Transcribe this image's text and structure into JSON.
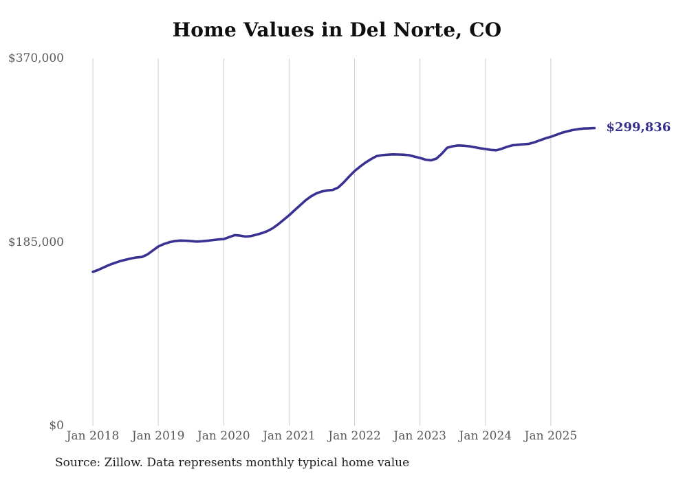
{
  "header": {
    "title": "Home Values in Del Norte, CO"
  },
  "footer": {
    "source_note": "Source: Zillow. Data represents monthly typical home value"
  },
  "chart_data": {
    "type": "line",
    "title": "Home Values in Del Norte, CO",
    "series_name": "Monthly typical home value",
    "frequency": "monthly",
    "x_start_label": "Jan 2018",
    "x_end_label": "Sep 2025",
    "x_tick_labels": [
      "Jan 2018",
      "Jan 2019",
      "Jan 2020",
      "Jan 2021",
      "Jan 2022",
      "Jan 2023",
      "Jan 2024",
      "Jan 2025"
    ],
    "y_ticks": [
      {
        "label": "$370,000",
        "value": 370000
      },
      {
        "label": "$185,000",
        "value": 185000
      },
      {
        "label": "$0",
        "value": 0
      }
    ],
    "ylim": [
      0,
      370000
    ],
    "grid": "vertical-only",
    "legend": "none",
    "line_color": "#3a3292",
    "gridline_color": "#cccccc",
    "tick_label_color": "#595959",
    "end_label": "$299,836",
    "end_value": 299836,
    "values": [
      155000,
      157000,
      159500,
      162000,
      164000,
      165800,
      167200,
      168500,
      169500,
      170000,
      172500,
      176500,
      180500,
      183000,
      184800,
      186000,
      186500,
      186400,
      186000,
      185500,
      185800,
      186300,
      187000,
      187600,
      188000,
      190000,
      192000,
      191500,
      190500,
      191000,
      192500,
      194000,
      196000,
      199000,
      203000,
      207500,
      212000,
      217000,
      222000,
      227000,
      231000,
      234000,
      236000,
      237000,
      237500,
      240000,
      245000,
      251000,
      256500,
      261000,
      265000,
      268500,
      271500,
      272500,
      273000,
      273300,
      273200,
      273000,
      272500,
      271000,
      269700,
      268000,
      267300,
      269000,
      274000,
      280000,
      281500,
      282300,
      282000,
      281500,
      280500,
      279500,
      278700,
      277800,
      277500,
      279000,
      281000,
      282500,
      283000,
      283500,
      284000,
      285500,
      287500,
      289500,
      291000,
      293000,
      295000,
      296500,
      297800,
      298700,
      299300,
      299500,
      299836
    ]
  }
}
